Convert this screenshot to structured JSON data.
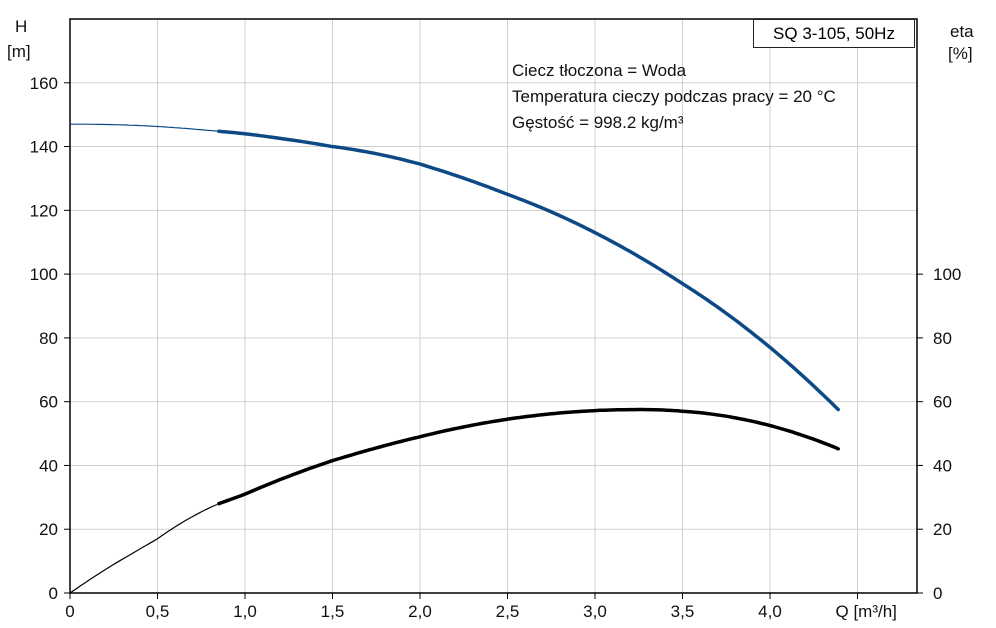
{
  "chart_data": {
    "type": "line",
    "title": "SQ 3-105, 50Hz",
    "annotations": [
      "Ciecz tłoczona = Woda",
      "Temperatura cieczy podczas pracy = 20 °C",
      "Gęstość = 998.2 kg/m³"
    ],
    "xlabel": "Q [m³/h]",
    "ylabel_left": [
      "H",
      "[m]"
    ],
    "ylabel_right": [
      "eta",
      "[%]"
    ],
    "xlim": [
      0,
      4.85
    ],
    "ylim": [
      0,
      180
    ],
    "x_ticks": [
      "0",
      "0,5",
      "1,0",
      "1,5",
      "2,0",
      "2,5",
      "3,0",
      "3,5",
      "4,0"
    ],
    "x_tick_values": [
      0,
      0.5,
      1,
      1.5,
      2,
      2.5,
      3,
      3.5,
      4
    ],
    "y_left_ticks": [
      0,
      20,
      40,
      60,
      80,
      100,
      120,
      140,
      160
    ],
    "y_right_ticks": [
      0,
      20,
      40,
      60,
      80,
      100
    ],
    "grid": true,
    "series": [
      {
        "name": "H",
        "color": "#0d4a85",
        "operating_from": 0.85,
        "x": [
          0,
          0.5,
          0.85,
          1.0,
          1.5,
          2.0,
          2.5,
          3.0,
          3.5,
          4.0,
          4.4
        ],
        "y": [
          147,
          146.3,
          144.8,
          144,
          140,
          134.5,
          125,
          113,
          97,
          77,
          57
        ]
      },
      {
        "name": "eta",
        "color": "#000000",
        "operating_from": 0.85,
        "x": [
          0,
          0.25,
          0.5,
          0.85,
          1.0,
          1.5,
          2.0,
          2.5,
          3.0,
          3.2,
          3.5,
          4.0,
          4.4
        ],
        "y": [
          0,
          9,
          17,
          28,
          31,
          41.5,
          49,
          54.5,
          57.2,
          57.5,
          57,
          52.5,
          45
        ]
      }
    ]
  }
}
